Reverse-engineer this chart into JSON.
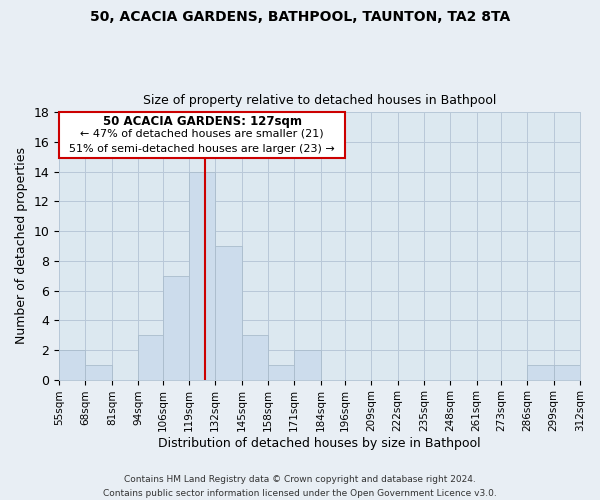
{
  "title1": "50, ACACIA GARDENS, BATHPOOL, TAUNTON, TA2 8TA",
  "title2": "Size of property relative to detached houses in Bathpool",
  "xlabel": "Distribution of detached houses by size in Bathpool",
  "ylabel": "Number of detached properties",
  "bin_edges": [
    55,
    68,
    81,
    94,
    106,
    119,
    132,
    145,
    158,
    171,
    184,
    196,
    209,
    222,
    235,
    248,
    261,
    273,
    286,
    299,
    312
  ],
  "bin_labels": [
    "55sqm",
    "68sqm",
    "81sqm",
    "94sqm",
    "106sqm",
    "119sqm",
    "132sqm",
    "145sqm",
    "158sqm",
    "171sqm",
    "184sqm",
    "196sqm",
    "209sqm",
    "222sqm",
    "235sqm",
    "248sqm",
    "261sqm",
    "273sqm",
    "286sqm",
    "299sqm",
    "312sqm"
  ],
  "counts": [
    2,
    1,
    0,
    3,
    7,
    14,
    9,
    3,
    1,
    2,
    0,
    0,
    0,
    0,
    0,
    0,
    0,
    0,
    1,
    1,
    0
  ],
  "bar_color": "#ccdcec",
  "bar_edge_color": "#aabccc",
  "vline_x": 127,
  "vline_color": "#cc0000",
  "annotation_title": "50 ACACIA GARDENS: 127sqm",
  "annotation_line1": "← 47% of detached houses are smaller (21)",
  "annotation_line2": "51% of semi-detached houses are larger (23) →",
  "annotation_box_facecolor": "#ffffff",
  "annotation_box_edgecolor": "#cc0000",
  "ylim": [
    0,
    18
  ],
  "yticks": [
    0,
    2,
    4,
    6,
    8,
    10,
    12,
    14,
    16,
    18
  ],
  "footer1": "Contains HM Land Registry data © Crown copyright and database right 2024.",
  "footer2": "Contains public sector information licensed under the Open Government Licence v3.0.",
  "bg_color": "#e8eef4",
  "plot_bg_color": "#dce8f0",
  "grid_color": "#b8c8d8"
}
